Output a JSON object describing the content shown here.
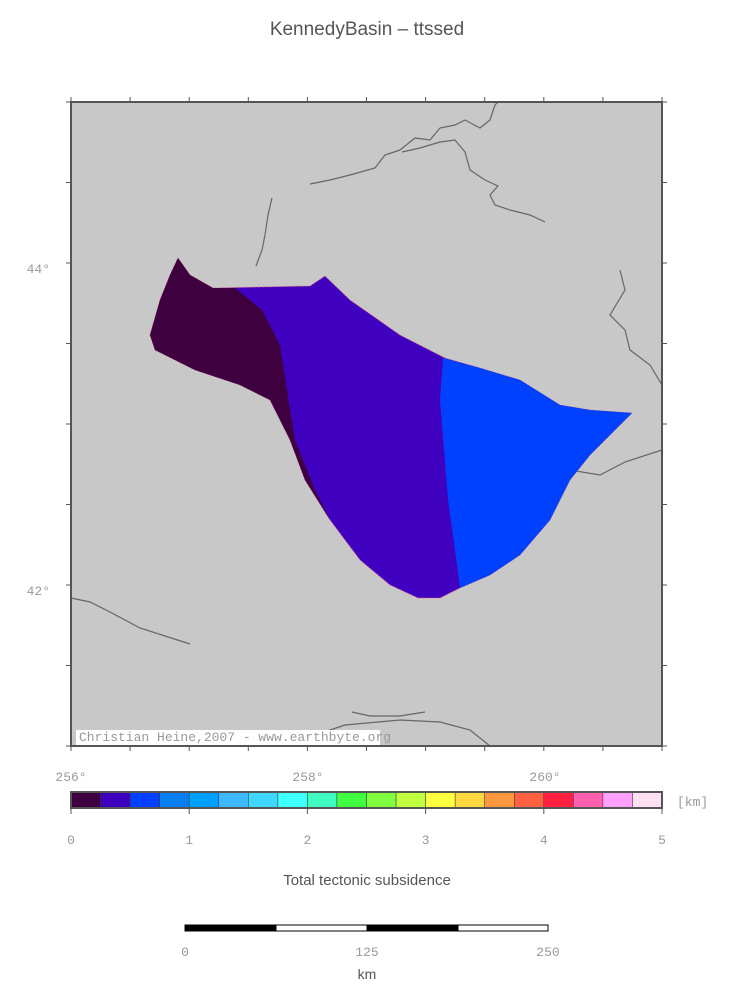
{
  "title": "KennedyBasin – ttssed",
  "map": {
    "x_labels": [
      "256°",
      "258°",
      "260°"
    ],
    "y_labels": [
      "44°",
      "42°"
    ],
    "credit": "Christian Heine,2007 - www.earthbyte.org"
  },
  "colorbar": {
    "colors": [
      "#3f0040",
      "#4000c0",
      "#0040ff",
      "#0a80f0",
      "#00a0ff",
      "#40b8ff",
      "#40d8ff",
      "#40ffff",
      "#40ffc0",
      "#40ff40",
      "#80ff40",
      "#c0ff40",
      "#ffff40",
      "#ffd840",
      "#ff9840",
      "#ff6040",
      "#ff2040",
      "#ff60b0",
      "#ffa0ff",
      "#ffe0f0"
    ],
    "ticks": [
      "0",
      "1",
      "2",
      "3",
      "4",
      "5"
    ],
    "unit": "[km]",
    "label": "Total tectonic subsidence"
  },
  "scalebar": {
    "ticks": [
      "0",
      "125",
      "250"
    ],
    "unit": "km"
  }
}
